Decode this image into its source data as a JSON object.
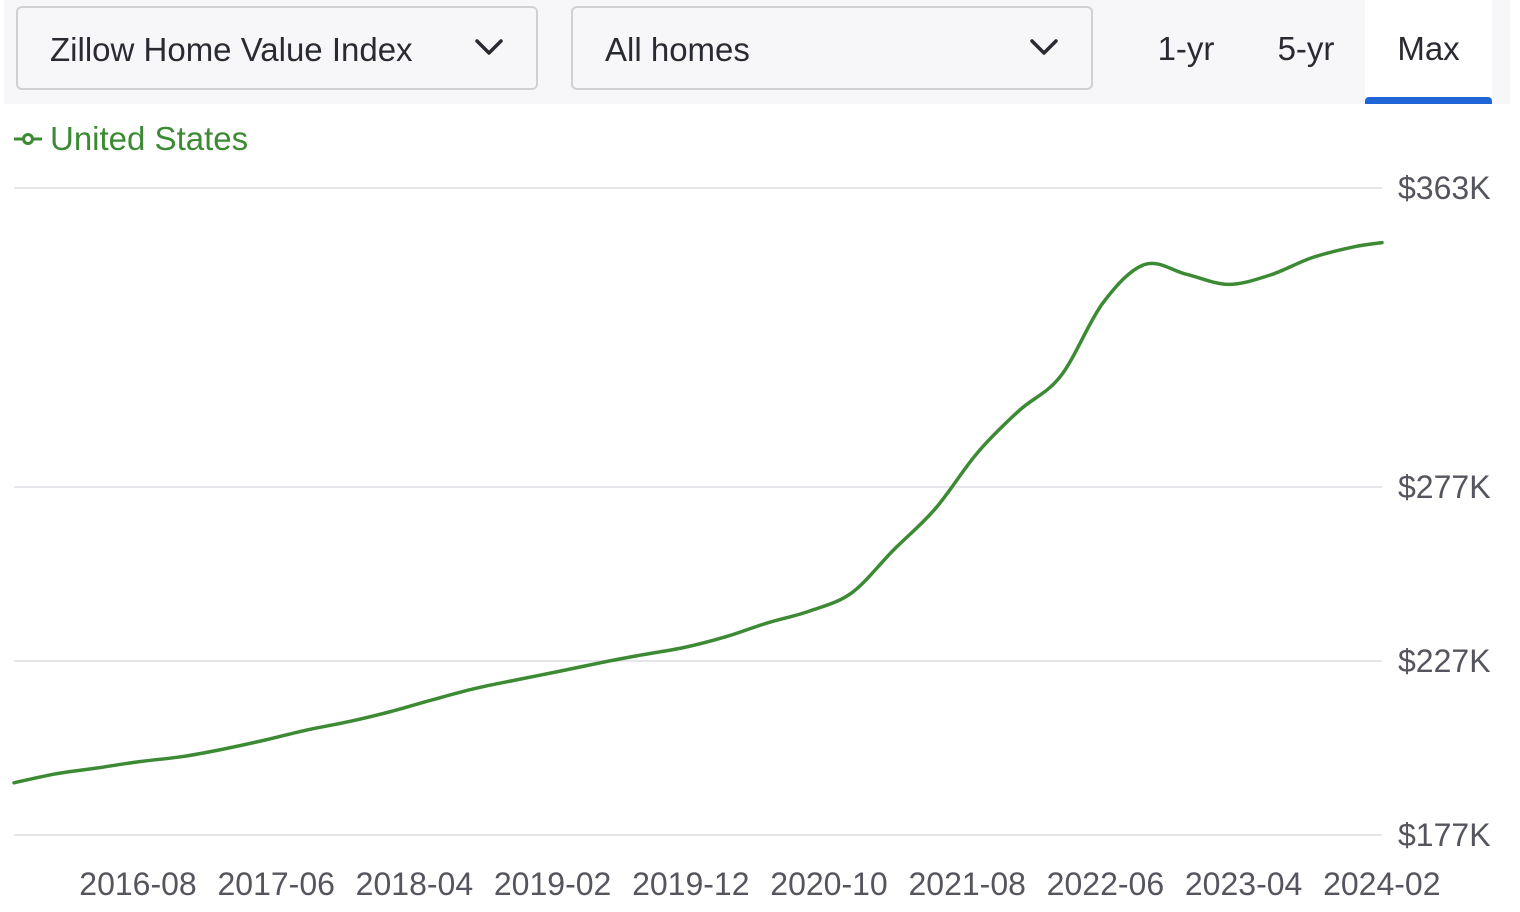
{
  "controls": {
    "metric_dropdown": {
      "selected": "Zillow Home Value Index",
      "icon": "chevron-down-icon"
    },
    "home_type_dropdown": {
      "selected": "All homes",
      "icon": "chevron-down-icon"
    },
    "range_tabs": [
      {
        "label": "1-yr",
        "active": false
      },
      {
        "label": "5-yr",
        "active": false
      },
      {
        "label": "Max",
        "active": true
      }
    ],
    "active_tab_color": "#1f65d6"
  },
  "legend": {
    "label": "United States",
    "color": "#3d8a34",
    "icon": "line-marker-icon"
  },
  "chart_data": {
    "type": "line",
    "x_axis_type": "date",
    "xlim": [
      "2015-11",
      "2024-01"
    ],
    "ylim": [
      177,
      363
    ],
    "y_unit": "thousand USD",
    "y_ticks": [
      {
        "value": 363,
        "label": "$363K"
      },
      {
        "value": 277,
        "label": "$277K"
      },
      {
        "value": 227,
        "label": "$227K"
      },
      {
        "value": 177,
        "label": "$177K"
      }
    ],
    "x_ticks": [
      "2016-08",
      "2017-06",
      "2018-04",
      "2019-02",
      "2019-12",
      "2020-10",
      "2021-08",
      "2022-06",
      "2023-04",
      "2024-02"
    ],
    "grid": true,
    "series": [
      {
        "name": "United States",
        "color": "#3d8a34",
        "points": [
          [
            "2015-11",
            192.0
          ],
          [
            "2016-02",
            194.6
          ],
          [
            "2016-05",
            196.3
          ],
          [
            "2016-08",
            198.1
          ],
          [
            "2016-11",
            199.5
          ],
          [
            "2017-02",
            201.7
          ],
          [
            "2017-05",
            204.3
          ],
          [
            "2017-08",
            207.2
          ],
          [
            "2017-11",
            209.6
          ],
          [
            "2018-02",
            212.5
          ],
          [
            "2018-05",
            215.9
          ],
          [
            "2018-08",
            219.1
          ],
          [
            "2018-11",
            221.6
          ],
          [
            "2019-02",
            224.0
          ],
          [
            "2019-05",
            226.5
          ],
          [
            "2019-08",
            228.8
          ],
          [
            "2019-11",
            230.9
          ],
          [
            "2020-02",
            234.0
          ],
          [
            "2020-05",
            238.0
          ],
          [
            "2020-08",
            241.4
          ],
          [
            "2020-11",
            246.6
          ],
          [
            "2021-02",
            258.9
          ],
          [
            "2021-05",
            270.8
          ],
          [
            "2021-08",
            286.8
          ],
          [
            "2021-11",
            299.0
          ],
          [
            "2022-02",
            309.0
          ],
          [
            "2022-05",
            329.9
          ],
          [
            "2022-08",
            341.0
          ],
          [
            "2022-11",
            338.2
          ],
          [
            "2023-02",
            335.3
          ],
          [
            "2023-05",
            338.0
          ],
          [
            "2023-08",
            343.0
          ],
          [
            "2023-11",
            346.1
          ],
          [
            "2024-01",
            347.3
          ]
        ]
      }
    ]
  }
}
